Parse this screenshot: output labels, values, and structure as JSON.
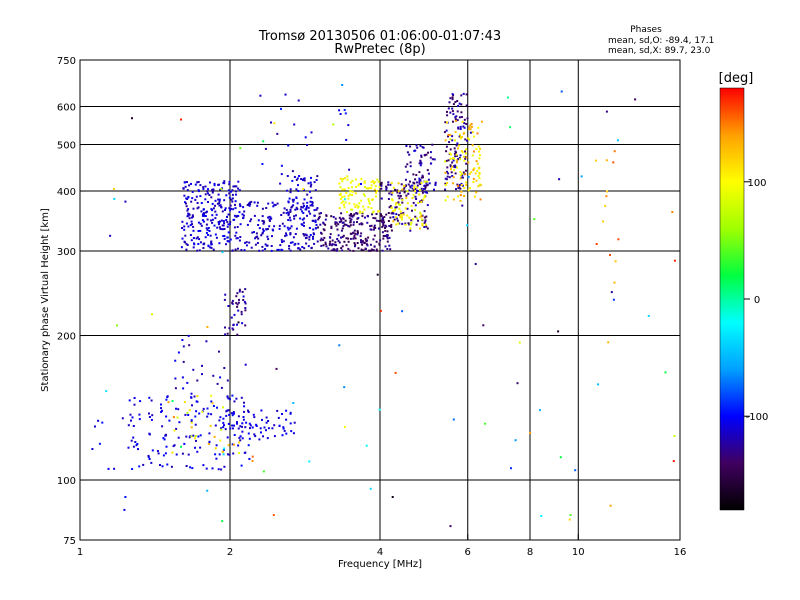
{
  "chart_data": {
    "type": "scatter",
    "title": "Tromsø 20130506 01:06:00-01:07:43",
    "subtitle": "RwPretec (8p)",
    "xlabel": "Frequency [MHz]",
    "ylabel": "Stationary phase Virtual Height [km]",
    "xscale": "log",
    "yscale": "log",
    "xlim": [
      1,
      16
    ],
    "ylim": [
      75,
      750
    ],
    "xticks": [
      {
        "v": 1,
        "label": "1"
      },
      {
        "v": 2,
        "label": "2"
      },
      {
        "v": 4,
        "label": "4"
      },
      {
        "v": 6,
        "label": "6"
      },
      {
        "v": 8,
        "label": "8"
      },
      {
        "v": 10,
        "label": "10"
      },
      {
        "v": 16,
        "label": "16"
      }
    ],
    "xgrid": [
      2,
      4,
      6,
      8,
      10
    ],
    "yticks": [
      {
        "v": 75,
        "label": "75"
      },
      {
        "v": 100,
        "label": "100"
      },
      {
        "v": 200,
        "label": "200"
      },
      {
        "v": 300,
        "label": "300"
      },
      {
        "v": 400,
        "label": "400"
      },
      {
        "v": 500,
        "label": "500"
      },
      {
        "v": 600,
        "label": "600"
      },
      {
        "v": 750,
        "label": "750"
      }
    ],
    "ygrid": [
      100,
      200,
      300,
      400,
      500,
      600
    ],
    "grid": true,
    "legend": {
      "title": "Phases",
      "lines": [
        "mean, sd,O: -89.4, 17.1",
        "mean, sd,X:  89.7, 23.0"
      ],
      "placement": "top-right"
    },
    "colorbar": {
      "label": "[deg]",
      "range": [
        -180,
        180
      ],
      "ticks": [
        {
          "v": 100,
          "label": "100"
        },
        {
          "v": 0,
          "label": "0"
        },
        {
          "v": -100,
          "label": "-100"
        }
      ],
      "stops": [
        "#000000",
        "#400060",
        "#0000ff",
        "#00a0ff",
        "#00ffff",
        "#00ff40",
        "#a0ff00",
        "#ffff00",
        "#ffa000",
        "#ff0000"
      ]
    },
    "clusters": [
      {
        "f": [
          1.6,
          2.1
        ],
        "h": [
          300,
          420
        ],
        "ph": [
          -125,
          -100
        ],
        "n": 260
      },
      {
        "f": [
          2.1,
          3.0
        ],
        "h": [
          300,
          380
        ],
        "ph": [
          -125,
          -105
        ],
        "n": 180
      },
      {
        "f": [
          2.6,
          3.0
        ],
        "h": [
          330,
          430
        ],
        "ph": [
          -120,
          -100
        ],
        "n": 60
      },
      {
        "f": [
          3.0,
          4.2
        ],
        "h": [
          300,
          360
        ],
        "ph": [
          -150,
          -120
        ],
        "n": 220
      },
      {
        "f": [
          4.0,
          5.0
        ],
        "h": [
          330,
          420
        ],
        "ph": [
          -150,
          -115
        ],
        "n": 120
      },
      {
        "f": [
          4.5,
          5.2
        ],
        "h": [
          400,
          500
        ],
        "ph": [
          -145,
          -110
        ],
        "n": 70
      },
      {
        "f": [
          5.4,
          6.0
        ],
        "h": [
          400,
          640
        ],
        "ph": [
          -145,
          -110
        ],
        "n": 110
      },
      {
        "f": [
          3.3,
          4.0
        ],
        "h": [
          360,
          430
        ],
        "ph": [
          85,
          115
        ],
        "n": 90
      },
      {
        "f": [
          4.2,
          5.0
        ],
        "h": [
          330,
          420
        ],
        "ph": [
          80,
          125
        ],
        "n": 70
      },
      {
        "f": [
          5.4,
          6.4
        ],
        "h": [
          380,
          560
        ],
        "ph": [
          85,
          150
        ],
        "n": 110
      },
      {
        "f": [
          1.25,
          2.2
        ],
        "h": [
          105,
          150
        ],
        "ph": [
          -120,
          -95
        ],
        "n": 170
      },
      {
        "f": [
          2.0,
          2.7
        ],
        "h": [
          120,
          140
        ],
        "ph": [
          -120,
          -100
        ],
        "n": 60
      },
      {
        "f": [
          1.5,
          2.1
        ],
        "h": [
          110,
          150
        ],
        "ph": [
          70,
          150
        ],
        "n": 30
      },
      {
        "f": [
          1.95,
          2.15
        ],
        "h": [
          200,
          250
        ],
        "ph": [
          -140,
          -110
        ],
        "n": 40
      },
      {
        "f": [
          1.55,
          2.0
        ],
        "h": [
          150,
          200
        ],
        "ph": [
          -130,
          -100
        ],
        "n": 25
      },
      {
        "f": [
          2.3,
          3.5
        ],
        "h": [
          400,
          640
        ],
        "ph": [
          -130,
          -90
        ],
        "n": 30
      },
      {
        "f": [
          1.1,
          16
        ],
        "h": [
          80,
          700
        ],
        "ph": [
          -180,
          180
        ],
        "n": 90
      },
      {
        "f": [
          10.8,
          12.2
        ],
        "h": [
          170,
          500
        ],
        "ph": [
          120,
          170
        ],
        "n": 14
      },
      {
        "f": [
          1.05,
          1.25
        ],
        "h": [
          85,
          135
        ],
        "ph": [
          -115,
          -95
        ],
        "n": 10
      }
    ]
  }
}
